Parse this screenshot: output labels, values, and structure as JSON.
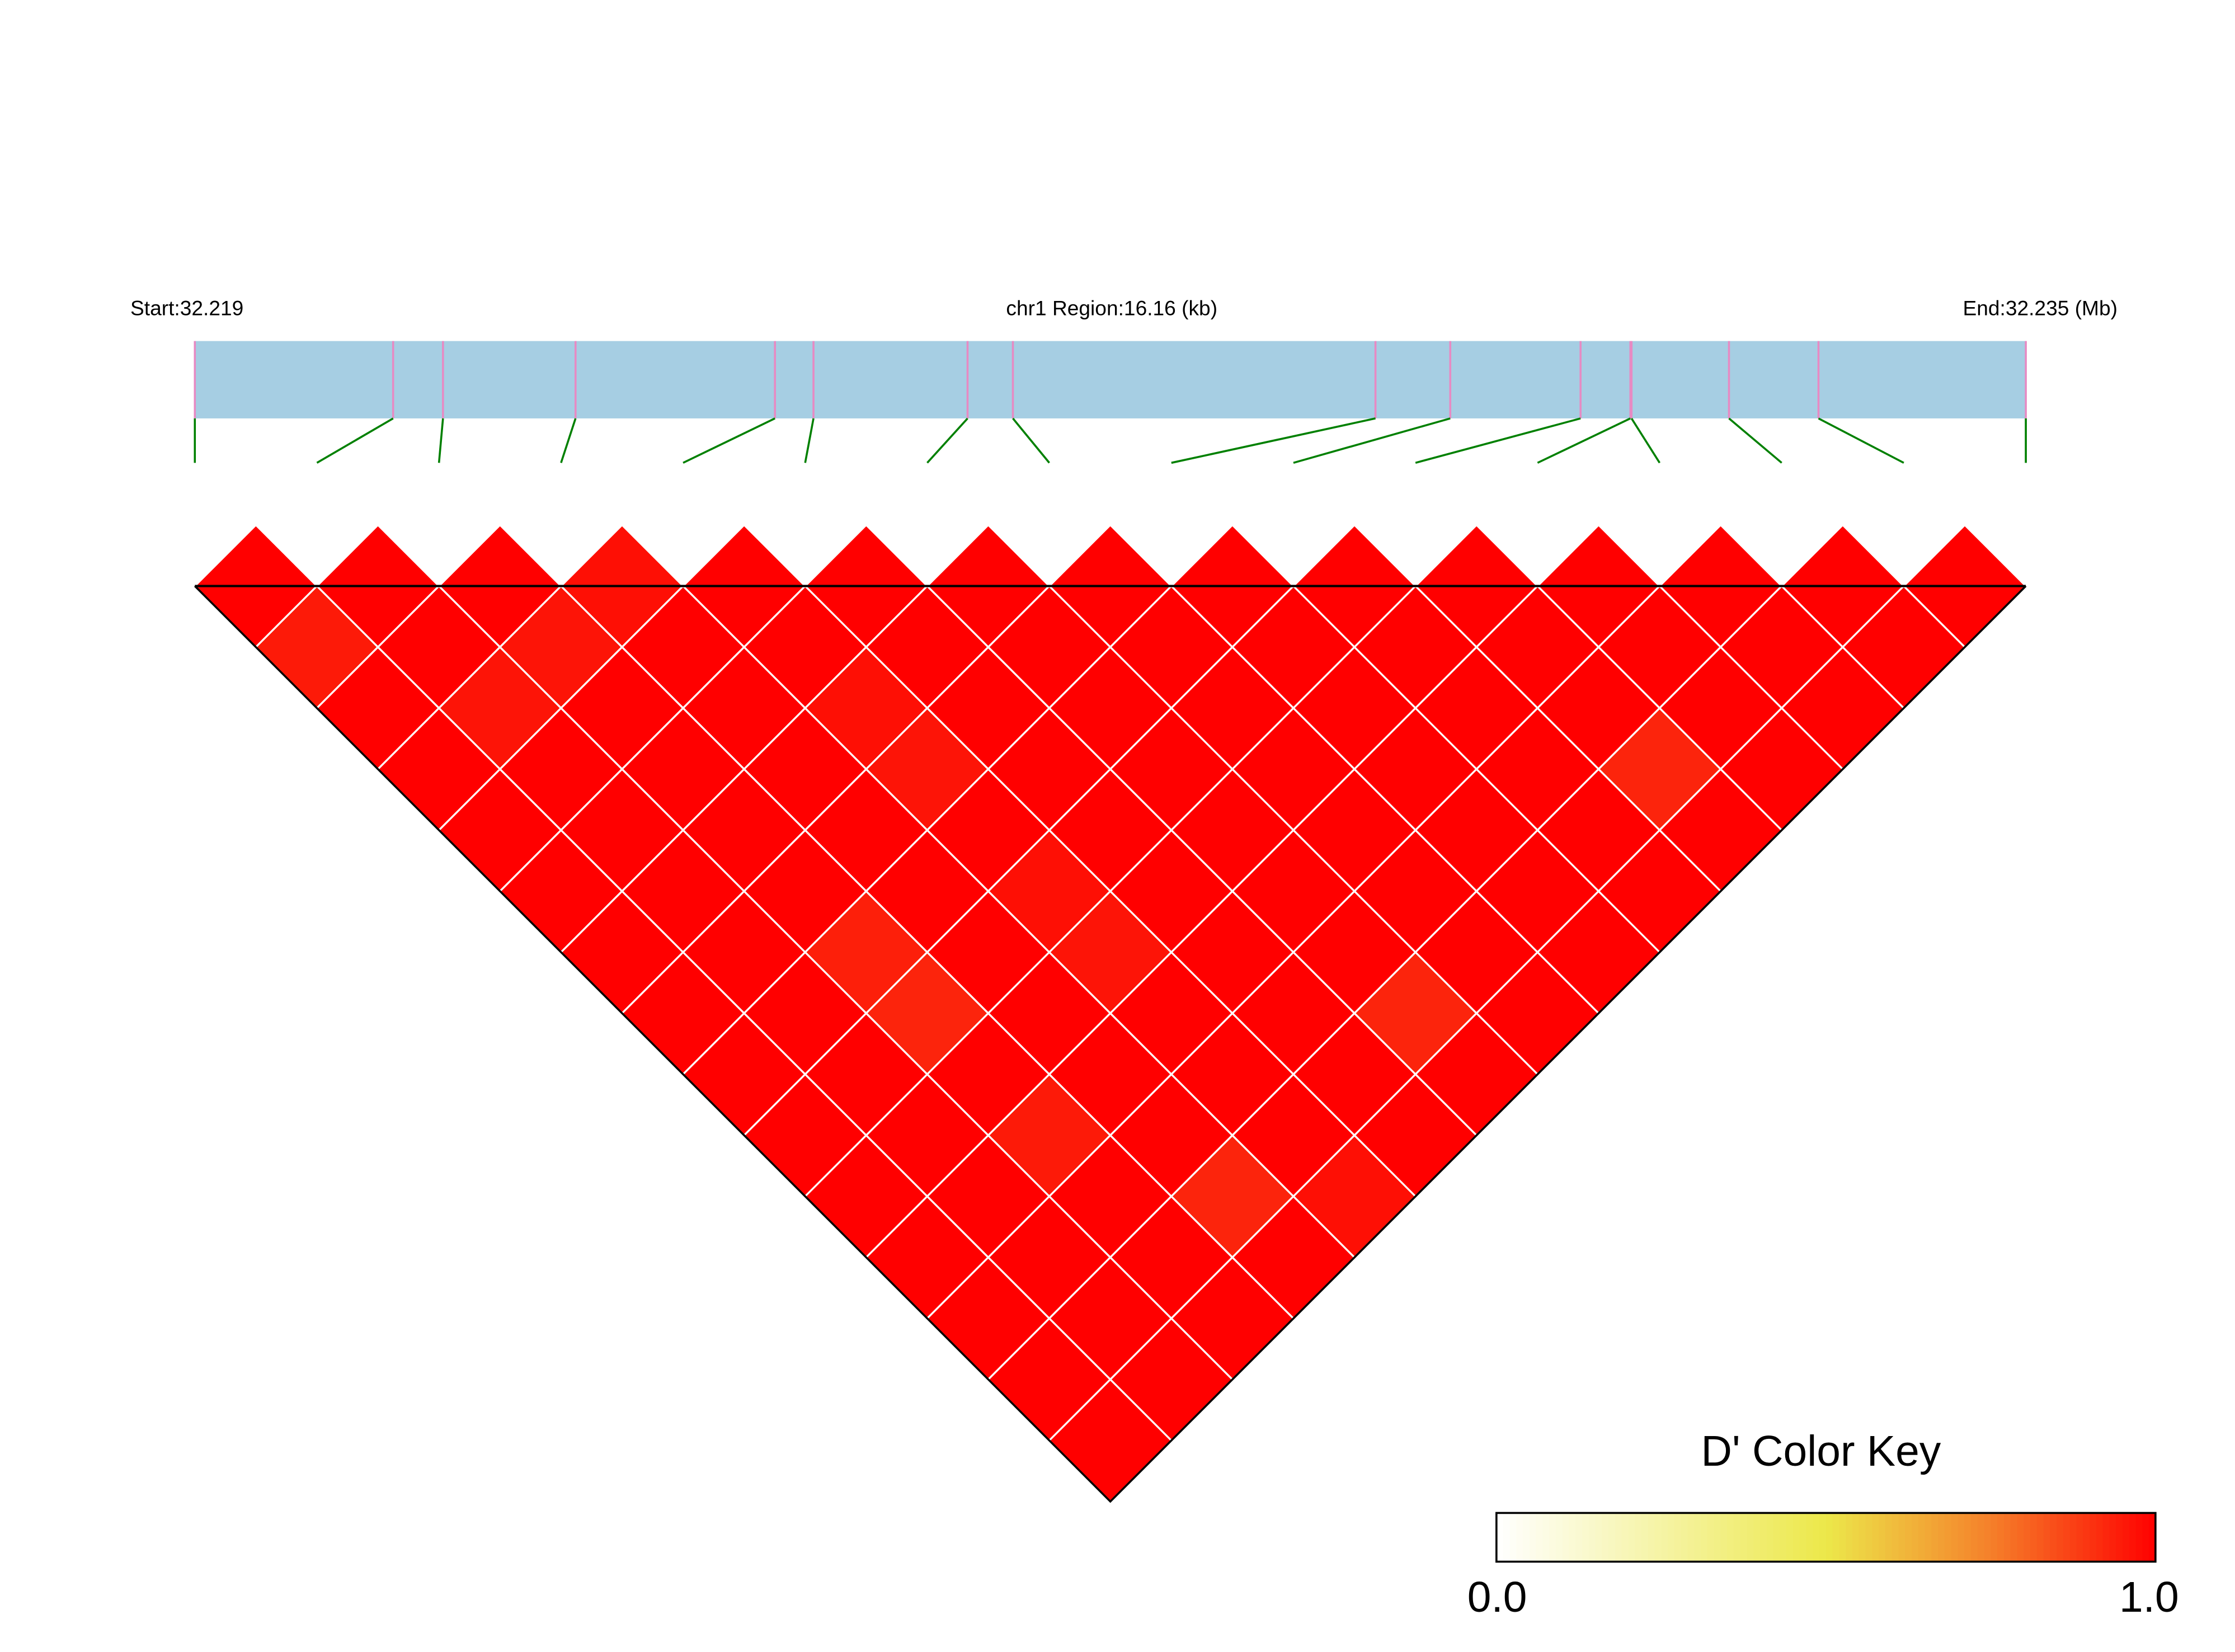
{
  "chart_data": {
    "type": "heatmap",
    "subtype": "LD triangle heatmap",
    "track": {
      "start_label": "Start:32.219",
      "region_label": "chr1 Region:16.16 (kb)",
      "end_label": "End:32.235 (Mb)",
      "region_kb": 16.16,
      "snp_offsets_kb": [
        0,
        1.75,
        2.19,
        3.36,
        5.12,
        5.46,
        6.82,
        7.22,
        10.42,
        11.08,
        12.23,
        12.67,
        12.68,
        13.54,
        14.33,
        16.16
      ],
      "bar_color": "#a6cee3",
      "snp_mark_color": "#e78ac3",
      "connector_color": "#008000"
    },
    "n_snps": 16,
    "metric": "D'",
    "values_upper_triangle_rows": [
      [
        1,
        0.95,
        1,
        1,
        1,
        1,
        1,
        1,
        1,
        1,
        1,
        1,
        1,
        1,
        1
      ],
      [
        1,
        1,
        0.96,
        1,
        1,
        1,
        1,
        1,
        1,
        1,
        1,
        1,
        1,
        1
      ],
      [
        1,
        0.96,
        1,
        1,
        1,
        1,
        0.94,
        0.93,
        1,
        0.95,
        1,
        1,
        1
      ],
      [
        0.97,
        1,
        1,
        1,
        1,
        1,
        1,
        1,
        1,
        1,
        0.93,
        1
      ],
      [
        1,
        1,
        0.97,
        0.96,
        1,
        0.97,
        0.96,
        1,
        1,
        1,
        0.97
      ],
      [
        1,
        1,
        1,
        1,
        1,
        1,
        1,
        1,
        1,
        1
      ],
      [
        1,
        1,
        1,
        1,
        1,
        1,
        1,
        0.93,
        1
      ],
      [
        1,
        1,
        1,
        1,
        1,
        1,
        1,
        1
      ],
      [
        1,
        1,
        1,
        1,
        1,
        1,
        1
      ],
      [
        1,
        1,
        1,
        1,
        1,
        1
      ],
      [
        1,
        1,
        1,
        0.93,
        1
      ],
      [
        1,
        1,
        1,
        1
      ],
      [
        1,
        1,
        1
      ],
      [
        1,
        1
      ],
      [
        1
      ]
    ],
    "color_key": {
      "title": "D' Color Key",
      "min_label": "0.0",
      "max_label": "1.0",
      "range": [
        0,
        1
      ],
      "colors": [
        "#ffffff",
        "#ece84a",
        "#f5802a",
        "#ff0000"
      ]
    }
  }
}
